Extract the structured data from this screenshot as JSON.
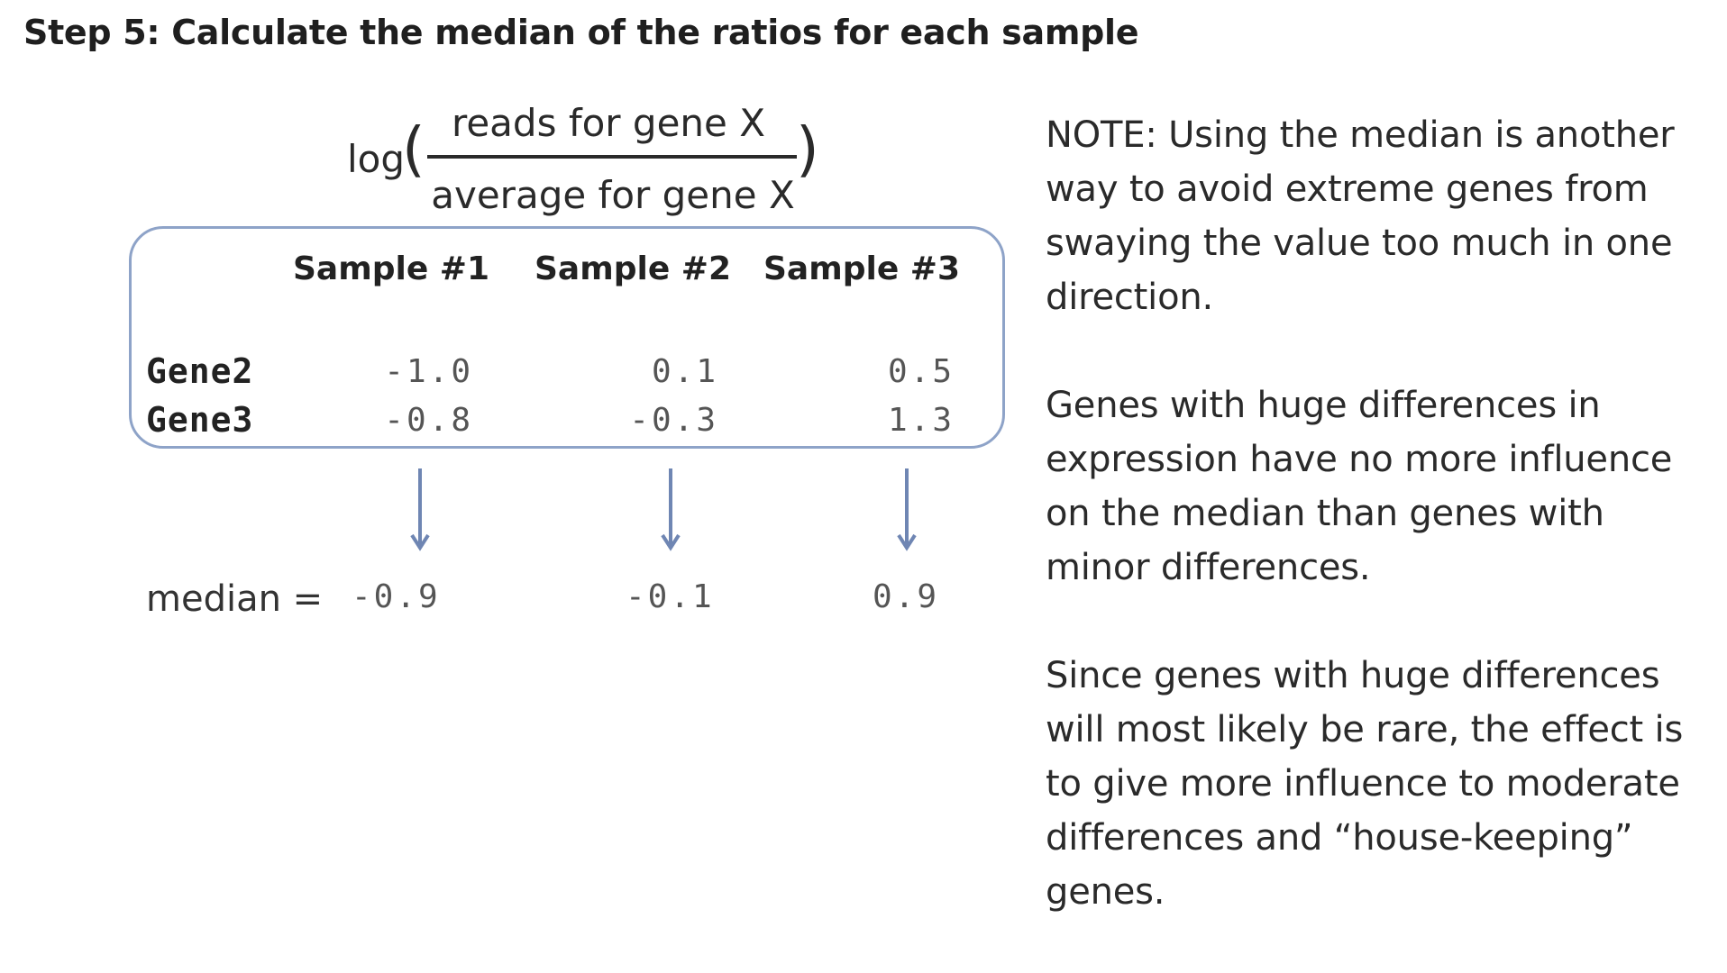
{
  "title": "Step 5: Calculate the median of the ratios for each sample",
  "formula": {
    "prefix": "log",
    "left_paren": "(",
    "right_paren": ")",
    "numerator": "reads for gene X",
    "denominator": "average for gene X"
  },
  "table": {
    "columns": [
      "Sample #1",
      "Sample #2",
      "Sample #3"
    ],
    "rows": [
      {
        "label": "Gene2",
        "values": [
          "-1.0",
          "0.1",
          "0.5"
        ]
      },
      {
        "label": "Gene3",
        "values": [
          "-0.8",
          "-0.3",
          "1.3"
        ]
      }
    ]
  },
  "median": {
    "label": "median =",
    "values": [
      "-0.9",
      "-0.1",
      "0.9"
    ]
  },
  "notes": [
    [
      "NOTE: Using the median is another",
      "way to avoid extreme genes from",
      "swaying the value too much in one",
      "direction."
    ],
    [
      "Genes with huge differences in",
      "expression have no more influence",
      "on the median than genes with",
      "minor differences."
    ],
    [
      "Since genes with huge differences",
      "will most likely be rare, the effect is",
      "to give more influence to moderate",
      "differences and “house-keeping”",
      "genes."
    ]
  ],
  "colors": {
    "box_border": "#8ea3c8",
    "arrow": "#6f86b3",
    "text": "#2a2a2a",
    "value_text": "#555555"
  }
}
